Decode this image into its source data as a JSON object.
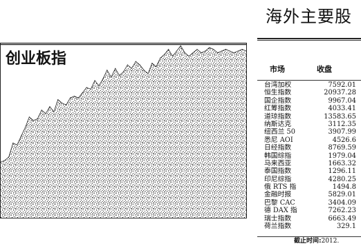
{
  "chart_data": {
    "type": "area",
    "title": "创业板指",
    "xlabel": "",
    "ylabel": "",
    "x": [
      0,
      1,
      2,
      3,
      4,
      5,
      6,
      7,
      8,
      9,
      10,
      11,
      12,
      13,
      14,
      15,
      16,
      17,
      18,
      19,
      20,
      21,
      22,
      23,
      24,
      25,
      26,
      27,
      28,
      29,
      30,
      31,
      32,
      33,
      34,
      35,
      36,
      37,
      38,
      39,
      40,
      41,
      42,
      43,
      44,
      45,
      46,
      47,
      48,
      49,
      50,
      51,
      52,
      53,
      54,
      55,
      56,
      57,
      58,
      59,
      60
    ],
    "values": [
      0.32,
      0.33,
      0.35,
      0.43,
      0.42,
      0.47,
      0.52,
      0.58,
      0.56,
      0.57,
      0.62,
      0.6,
      0.64,
      0.61,
      0.68,
      0.66,
      0.65,
      0.69,
      0.7,
      0.69,
      0.72,
      0.75,
      0.74,
      0.79,
      0.76,
      0.8,
      0.85,
      0.81,
      0.86,
      0.82,
      0.84,
      0.88,
      0.86,
      0.9,
      0.88,
      0.85,
      0.83,
      0.89,
      0.87,
      0.92,
      0.94,
      0.97,
      0.93,
      0.96,
      0.99,
      0.95,
      0.93,
      0.95,
      0.97,
      0.95,
      0.96,
      0.98,
      0.97,
      0.95,
      0.96,
      0.97,
      0.96,
      0.95,
      0.96,
      0.97,
      0.96
    ],
    "ylim": [
      0,
      1
    ],
    "grid": false,
    "legend": "none",
    "colors": {
      "fill_dots": "#2a2a2a",
      "background": "#ffffff",
      "line": "#222222"
    }
  },
  "market": {
    "title": "海外主要股",
    "headers": {
      "market": "市场",
      "close": "收盘"
    },
    "rows": [
      {
        "name": "台湾加权",
        "close": "7592.01"
      },
      {
        "name": "恒生指数",
        "close": "20937.28"
      },
      {
        "name": "国企指数",
        "close": "9967.04"
      },
      {
        "name": "红筹指数",
        "close": "4033.41"
      },
      {
        "name": "道琼指数",
        "close": "13583.65"
      },
      {
        "name": "纳斯达克",
        "close": "3112.35"
      },
      {
        "name": "纽西兰 50",
        "close": "3907.99"
      },
      {
        "name": "悉尼 AOI",
        "close": "4526.6"
      },
      {
        "name": "日经指数",
        "close": "8769.59"
      },
      {
        "name": "韩国综指",
        "close": "1979.04"
      },
      {
        "name": "马来西亚",
        "close": "1663.32"
      },
      {
        "name": "泰国指数",
        "close": "1296.11"
      },
      {
        "name": "印尼综指",
        "close": "4280.25"
      },
      {
        "name": "俄 RTS 指",
        "close": "1494.8"
      },
      {
        "name": "金融时报",
        "close": "5829.01"
      },
      {
        "name": "巴黎 CAC",
        "close": "3404.09"
      },
      {
        "name": "德 DAX 指",
        "close": "7262.23"
      },
      {
        "name": "瑞士指数",
        "close": "6663.49"
      },
      {
        "name": "荷兰指数",
        "close": "329.1"
      }
    ],
    "footer": {
      "label": "截止时间:",
      "value": "2012."
    }
  }
}
